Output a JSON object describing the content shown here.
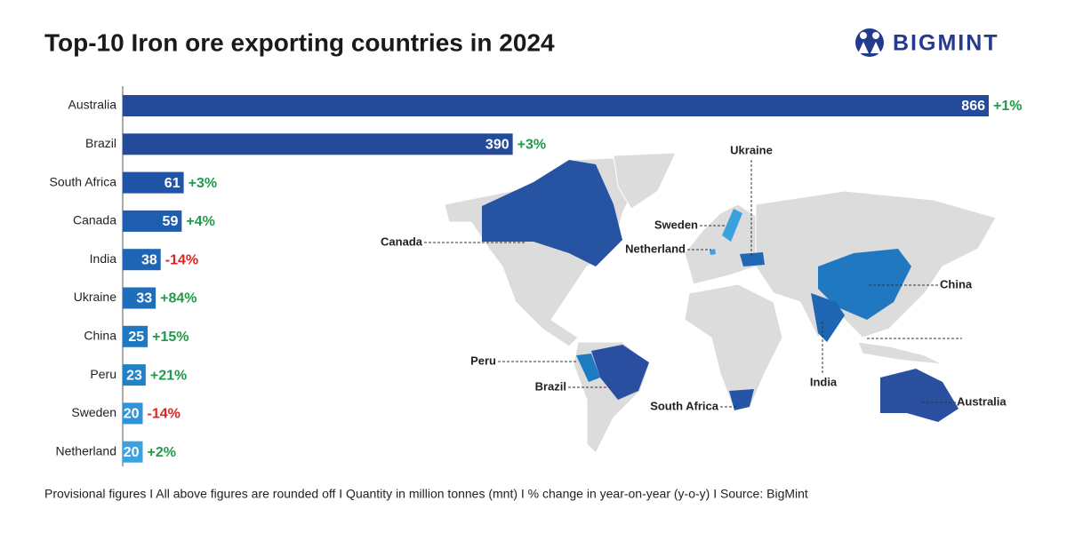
{
  "chart_data": {
    "type": "bar",
    "orientation": "horizontal",
    "title": "Top-10 Iron ore exporting countries in 2024",
    "brand": "BIGMINT",
    "categories": [
      "Australia",
      "Brazil",
      "South Africa",
      "Canada",
      "India",
      "Ukraine",
      "China",
      "Peru",
      "Sweden",
      "Netherland"
    ],
    "values": [
      866,
      390,
      61,
      59,
      38,
      33,
      25,
      23,
      20,
      20
    ],
    "colors": [
      "#234b9a",
      "#234b9a",
      "#2054a6",
      "#1f5dae",
      "#1e66b3",
      "#1e6eba",
      "#1f78c0",
      "#2181c7",
      "#3293d6",
      "#3aa2e0"
    ],
    "change_labels": [
      "+1%",
      "+3%",
      "+3%",
      "+4%",
      "-14%",
      "+84%",
      "+15%",
      "+21%",
      "-14%",
      "+2%"
    ],
    "footnote": "Provisional figures  I  All above figures are rounded off  I  Quantity in million tonnes (mnt)  I  % change in year-on-year (y-o-y)  I  Source: BigMint"
  }
}
